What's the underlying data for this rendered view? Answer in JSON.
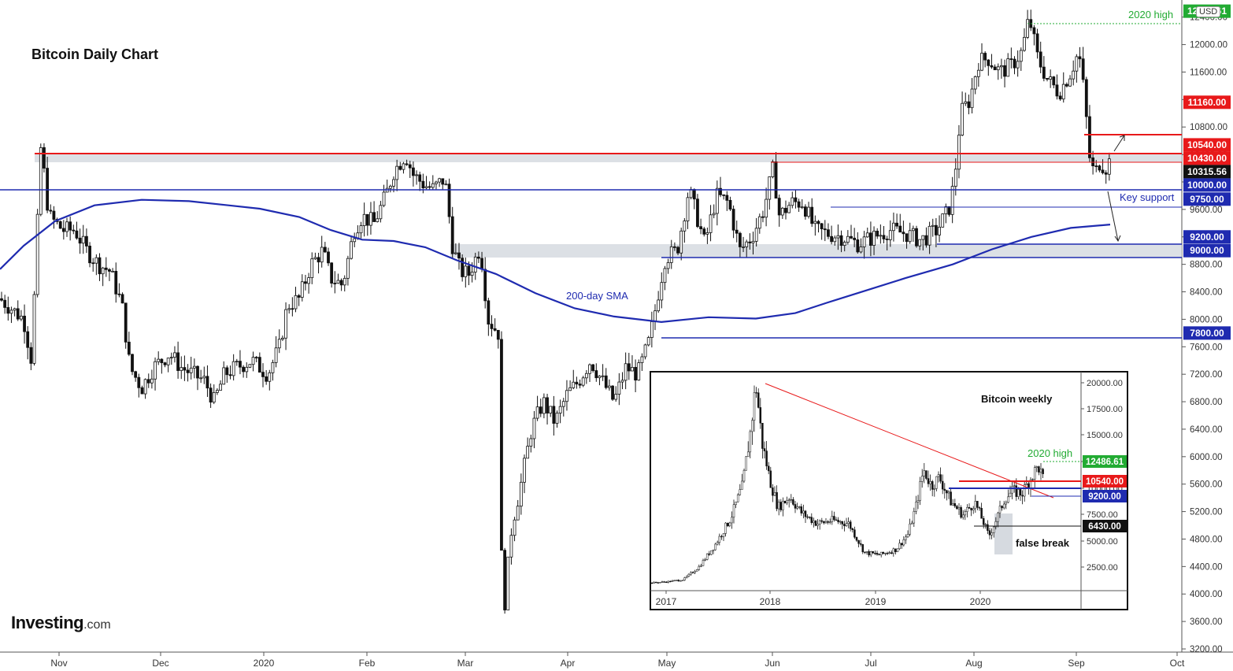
{
  "chart_data": [
    {
      "type": "candlestick",
      "title": "Bitcoin Daily Chart",
      "currency": "USD",
      "watermark": "Investing.com",
      "x_ticks": [
        "Nov",
        "Dec",
        "2020",
        "Feb",
        "Mar",
        "Apr",
        "May",
        "Jun",
        "Jul",
        "Aug",
        "Sep",
        "Oct"
      ],
      "y_ticks": [
        3200,
        3600,
        4000,
        4400,
        4800,
        5200,
        5600,
        6000,
        6400,
        6800,
        7200,
        7600,
        8000,
        8400,
        8800,
        9200,
        9600,
        10000,
        10400,
        10800,
        11200,
        11600,
        12000,
        12400
      ],
      "ylim": [
        3200,
        12600
      ],
      "y_tick_labels": [
        "3200.00",
        "3600.00",
        "4000.00",
        "4400.00",
        "4800.00",
        "5200.00",
        "5600.00",
        "6000.00",
        "6400.00",
        "6800.00",
        "7200.00",
        "7600.00",
        "8000.00",
        "8400.00",
        "8800.00",
        "9200.00",
        "9600.00",
        "10000.00",
        "10400.00",
        "10800.00",
        "11200.00",
        "11600.00",
        "12000.00",
        "12400.00"
      ],
      "levels": [
        {
          "value": 12486.61,
          "label": "12486.61",
          "color": "#22ab33",
          "style": "dotted"
        },
        {
          "value": 11160,
          "label": "11160.00",
          "color": "#e8191a"
        },
        {
          "value": 10540,
          "label": "10540.00",
          "color": "#e8191a"
        },
        {
          "value": 10430,
          "label": "10430.00",
          "color": "#e8191a"
        },
        {
          "value": 10315.56,
          "label": "10315.56",
          "color": "#111111"
        },
        {
          "value": 10000,
          "label": "10000.00",
          "color": "#1f2bb0"
        },
        {
          "value": 9750,
          "label": "9750.00",
          "color": "#1f2bb0"
        },
        {
          "value": 9200,
          "label": "9200.00",
          "color": "#1f2bb0"
        },
        {
          "value": 9000,
          "label": "9000.00",
          "color": "#1f2bb0"
        },
        {
          "value": 7800,
          "label": "7800.00",
          "color": "#1f2bb0"
        }
      ],
      "annotations": [
        "2020 high",
        "Key support",
        "200-day SMA"
      ],
      "sma_200": [
        [
          0,
          8730
        ],
        [
          30,
          9070
        ],
        [
          70,
          9430
        ],
        [
          120,
          9660
        ],
        [
          180,
          9740
        ],
        [
          240,
          9720
        ],
        [
          290,
          9660
        ],
        [
          330,
          9610
        ],
        [
          380,
          9490
        ],
        [
          420,
          9300
        ],
        [
          460,
          9160
        ],
        [
          500,
          9140
        ],
        [
          540,
          9050
        ],
        [
          580,
          8860
        ],
        [
          630,
          8660
        ],
        [
          680,
          8380
        ],
        [
          730,
          8160
        ],
        [
          780,
          8040
        ],
        [
          840,
          7960
        ],
        [
          900,
          8030
        ],
        [
          960,
          8010
        ],
        [
          1010,
          8090
        ],
        [
          1050,
          8240
        ],
        [
          1100,
          8420
        ],
        [
          1150,
          8600
        ],
        [
          1210,
          8800
        ],
        [
          1260,
          9020
        ],
        [
          1310,
          9200
        ],
        [
          1360,
          9330
        ],
        [
          1410,
          9380
        ]
      ],
      "price_path": [
        [
          0,
          8300
        ],
        [
          15,
          8150
        ],
        [
          30,
          8000
        ],
        [
          40,
          7400
        ],
        [
          52,
          10540
        ],
        [
          62,
          9500
        ],
        [
          80,
          9300
        ],
        [
          95,
          9300
        ],
        [
          110,
          9000
        ],
        [
          125,
          8800
        ],
        [
          140,
          8700
        ],
        [
          155,
          8200
        ],
        [
          165,
          7300
        ],
        [
          180,
          7000
        ],
        [
          195,
          7300
        ],
        [
          215,
          7500
        ],
        [
          230,
          7300
        ],
        [
          245,
          7200
        ],
        [
          260,
          7100
        ],
        [
          272,
          6800
        ],
        [
          285,
          7200
        ],
        [
          300,
          7300
        ],
        [
          320,
          7400
        ],
        [
          340,
          7200
        ],
        [
          355,
          7600
        ],
        [
          365,
          8200
        ],
        [
          380,
          8300
        ],
        [
          395,
          8800
        ],
        [
          410,
          9000
        ],
        [
          420,
          8600
        ],
        [
          435,
          8500
        ],
        [
          450,
          9300
        ],
        [
          460,
          9500
        ],
        [
          475,
          9400
        ],
        [
          490,
          9800
        ],
        [
          500,
          10150
        ],
        [
          515,
          10400
        ],
        [
          525,
          10100
        ],
        [
          540,
          9950
        ],
        [
          550,
          9900
        ],
        [
          565,
          10050
        ],
        [
          575,
          9050
        ],
        [
          585,
          8700
        ],
        [
          595,
          8650
        ],
        [
          610,
          9050
        ],
        [
          620,
          8000
        ],
        [
          633,
          7800
        ],
        [
          637,
          4500
        ],
        [
          641,
          3880
        ],
        [
          650,
          5000
        ],
        [
          660,
          5500
        ],
        [
          675,
          6400
        ],
        [
          690,
          6800
        ],
        [
          705,
          6500
        ],
        [
          720,
          6900
        ],
        [
          735,
          7100
        ],
        [
          750,
          7400
        ],
        [
          765,
          7100
        ],
        [
          780,
          6800
        ],
        [
          795,
          7300
        ],
        [
          810,
          7200
        ],
        [
          825,
          7700
        ],
        [
          838,
          8500
        ],
        [
          845,
          8900
        ],
        [
          860,
          9000
        ],
        [
          875,
          9900
        ],
        [
          885,
          9500
        ],
        [
          895,
          9100
        ],
        [
          910,
          9800
        ],
        [
          925,
          9700
        ],
        [
          940,
          9000
        ],
        [
          955,
          9200
        ],
        [
          970,
          9600
        ],
        [
          982,
          10200
        ],
        [
          990,
          9500
        ],
        [
          1005,
          9700
        ],
        [
          1020,
          9700
        ],
        [
          1035,
          9300
        ],
        [
          1050,
          9250
        ],
        [
          1070,
          9200
        ],
        [
          1090,
          9100
        ],
        [
          1110,
          9200
        ],
        [
          1130,
          9300
        ],
        [
          1150,
          9250
        ],
        [
          1170,
          9150
        ],
        [
          1190,
          9300
        ],
        [
          1205,
          9600
        ],
        [
          1212,
          10000
        ],
        [
          1220,
          11000
        ],
        [
          1232,
          11200
        ],
        [
          1242,
          11750
        ],
        [
          1255,
          11800
        ],
        [
          1270,
          11600
        ],
        [
          1285,
          11700
        ],
        [
          1298,
          11900
        ],
        [
          1307,
          12400
        ],
        [
          1318,
          11800
        ],
        [
          1330,
          11500
        ],
        [
          1345,
          11300
        ],
        [
          1360,
          11600
        ],
        [
          1370,
          11900
        ],
        [
          1378,
          11200
        ],
        [
          1383,
          10400
        ],
        [
          1390,
          10100
        ],
        [
          1397,
          10300
        ],
        [
          1404,
          10200
        ],
        [
          1410,
          10316
        ]
      ]
    },
    {
      "type": "candlestick",
      "title": "Bitcoin weekly",
      "x_ticks": [
        "2017",
        "2018",
        "2019",
        "2020"
      ],
      "y_tick_labels": [
        "2500.00",
        "5000.00",
        "7500.00",
        "10000.00",
        "12500.00",
        "15000.00",
        "17500.00",
        "20000.00"
      ],
      "ylim": [
        0,
        21000
      ],
      "levels": [
        {
          "value": 12486.61,
          "label": "12486.61",
          "color": "#22ab33"
        },
        {
          "value": 10540,
          "label": "10540.00",
          "color": "#e8191a"
        },
        {
          "value": 9200,
          "label": "9200.00",
          "color": "#1f2bb0"
        },
        {
          "value": 6430,
          "label": "6430.00",
          "color": "#111111"
        }
      ],
      "annotations": [
        "2020 high",
        "false break"
      ],
      "price_path": [
        [
          0,
          1000
        ],
        [
          20,
          1100
        ],
        [
          40,
          1300
        ],
        [
          60,
          2500
        ],
        [
          80,
          4500
        ],
        [
          100,
          7000
        ],
        [
          115,
          10000
        ],
        [
          125,
          15000
        ],
        [
          132,
          19500
        ],
        [
          140,
          14000
        ],
        [
          150,
          10500
        ],
        [
          160,
          8000
        ],
        [
          175,
          9000
        ],
        [
          190,
          7500
        ],
        [
          210,
          6500
        ],
        [
          230,
          6800
        ],
        [
          250,
          6500
        ],
        [
          270,
          3800
        ],
        [
          290,
          3600
        ],
        [
          310,
          4100
        ],
        [
          325,
          5500
        ],
        [
          335,
          8000
        ],
        [
          345,
          11500
        ],
        [
          355,
          10000
        ],
        [
          365,
          10800
        ],
        [
          380,
          8500
        ],
        [
          395,
          7300
        ],
        [
          410,
          8500
        ],
        [
          420,
          6800
        ],
        [
          428,
          5300
        ],
        [
          438,
          7000
        ],
        [
          448,
          8800
        ],
        [
          458,
          9500
        ],
        [
          470,
          9300
        ],
        [
          483,
          11000
        ],
        [
          491,
          11800
        ],
        [
          498,
          10300
        ]
      ]
    }
  ]
}
